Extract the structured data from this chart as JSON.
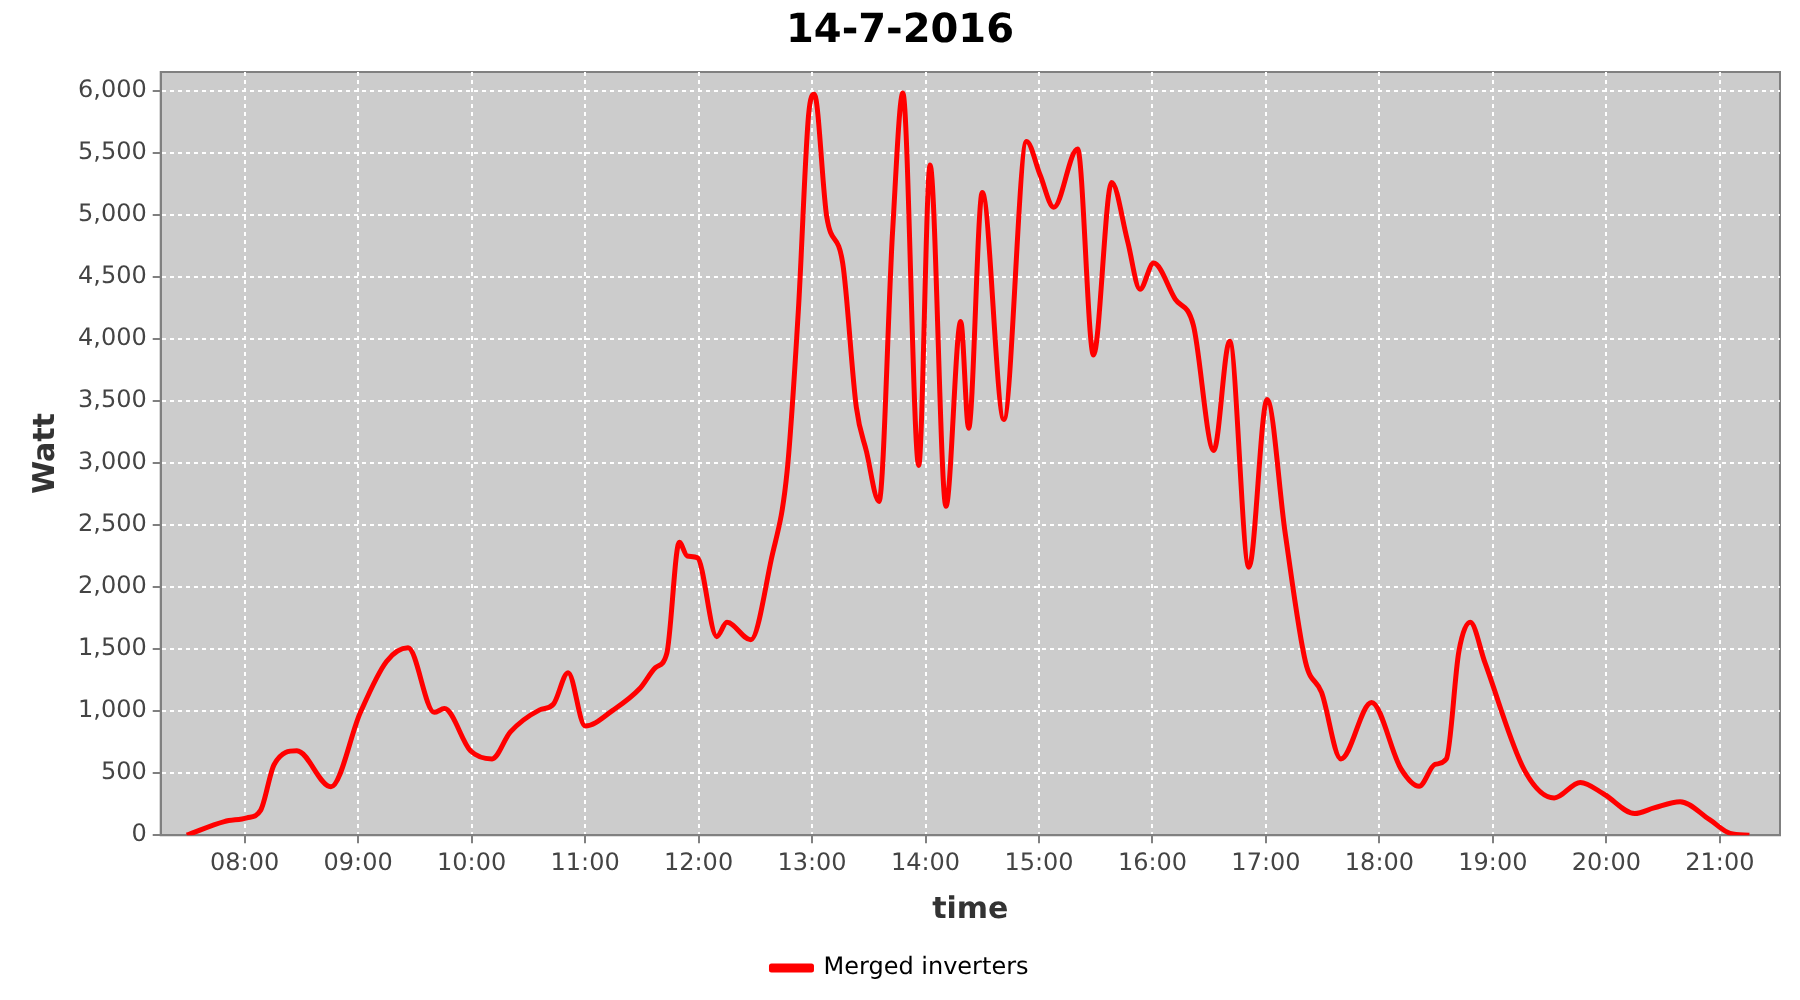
{
  "chart_data": {
    "type": "line",
    "title": "14-7-2016",
    "xlabel": "time",
    "ylabel": "Watt",
    "x": [
      7.49,
      7.82,
      8.02,
      8.14,
      8.26,
      8.46,
      8.76,
      9.02,
      9.25,
      9.44,
      9.67,
      9.76,
      9.99,
      10.18,
      10.34,
      10.6,
      10.72,
      10.85,
      11.0,
      11.25,
      11.48,
      11.62,
      11.72,
      11.83,
      11.9,
      11.99,
      12.16,
      12.25,
      12.46,
      12.64,
      12.78,
      12.88,
      12.97,
      13.02,
      13.13,
      13.27,
      13.39,
      13.48,
      13.59,
      13.71,
      13.8,
      13.94,
      14.04,
      14.18,
      14.31,
      14.38,
      14.5,
      14.69,
      14.89,
      15.01,
      15.13,
      15.34,
      15.48,
      15.64,
      15.78,
      15.89,
      16.01,
      16.2,
      16.36,
      16.54,
      16.68,
      16.85,
      17.01,
      17.17,
      17.35,
      17.49,
      17.66,
      17.93,
      18.19,
      18.35,
      18.49,
      18.59,
      18.7,
      18.8,
      18.93,
      19.28,
      19.54,
      19.77,
      19.98,
      20.25,
      20.42,
      20.65,
      20.91,
      21.09,
      21.26
    ],
    "series": [
      {
        "name": "Merged inverters",
        "color": "#ff0000",
        "values": [
          0,
          110,
          140,
          200,
          570,
          680,
          390,
          990,
          1400,
          1510,
          990,
          1020,
          680,
          615,
          830,
          1010,
          1055,
          1310,
          880,
          1010,
          1180,
          1350,
          1465,
          2360,
          2250,
          2235,
          1600,
          1715,
          1575,
          2220,
          2930,
          4240,
          5810,
          5970,
          4980,
          4610,
          3450,
          3090,
          2690,
          4870,
          5980,
          2980,
          5400,
          2650,
          4140,
          3280,
          5180,
          3350,
          5590,
          5320,
          5060,
          5530,
          3870,
          5260,
          4790,
          4400,
          4610,
          4320,
          4110,
          3100,
          3980,
          2160,
          3510,
          2430,
          1390,
          1150,
          615,
          1070,
          535,
          395,
          570,
          615,
          1480,
          1715,
          1390,
          520,
          300,
          425,
          330,
          175,
          220,
          270,
          125,
          15,
          0
        ]
      }
    ],
    "xlim": [
      7.26,
      21.53
    ],
    "xticks": [
      {
        "value": 8,
        "label": "08:00"
      },
      {
        "value": 9,
        "label": "09:00"
      },
      {
        "value": 10,
        "label": "10:00"
      },
      {
        "value": 11,
        "label": "11:00"
      },
      {
        "value": 12,
        "label": "12:00"
      },
      {
        "value": 13,
        "label": "13:00"
      },
      {
        "value": 14,
        "label": "14:00"
      },
      {
        "value": 15,
        "label": "15:00"
      },
      {
        "value": 16,
        "label": "16:00"
      },
      {
        "value": 17,
        "label": "17:00"
      },
      {
        "value": 18,
        "label": "18:00"
      },
      {
        "value": 19,
        "label": "19:00"
      },
      {
        "value": 20,
        "label": "20:00"
      },
      {
        "value": 21,
        "label": "21:00"
      }
    ],
    "ylim": [
      0,
      6150
    ],
    "yticks": [
      0,
      500,
      {
        "value": 1000,
        "label": "1,000"
      },
      {
        "value": 1500,
        "label": "1,500"
      },
      {
        "value": 2000,
        "label": "2,000"
      },
      {
        "value": 2500,
        "label": "2,500"
      },
      {
        "value": 3000,
        "label": "3,000"
      },
      {
        "value": 3500,
        "label": "3,500"
      },
      {
        "value": 4000,
        "label": "4,000"
      },
      {
        "value": 4500,
        "label": "4,500"
      },
      {
        "value": 5000,
        "label": "5,000"
      },
      {
        "value": 5500,
        "label": "5,500"
      },
      {
        "value": 6000,
        "label": "6,000"
      }
    ],
    "grid": true,
    "legend": "bottom",
    "marker": "none",
    "line_style": "solid"
  }
}
